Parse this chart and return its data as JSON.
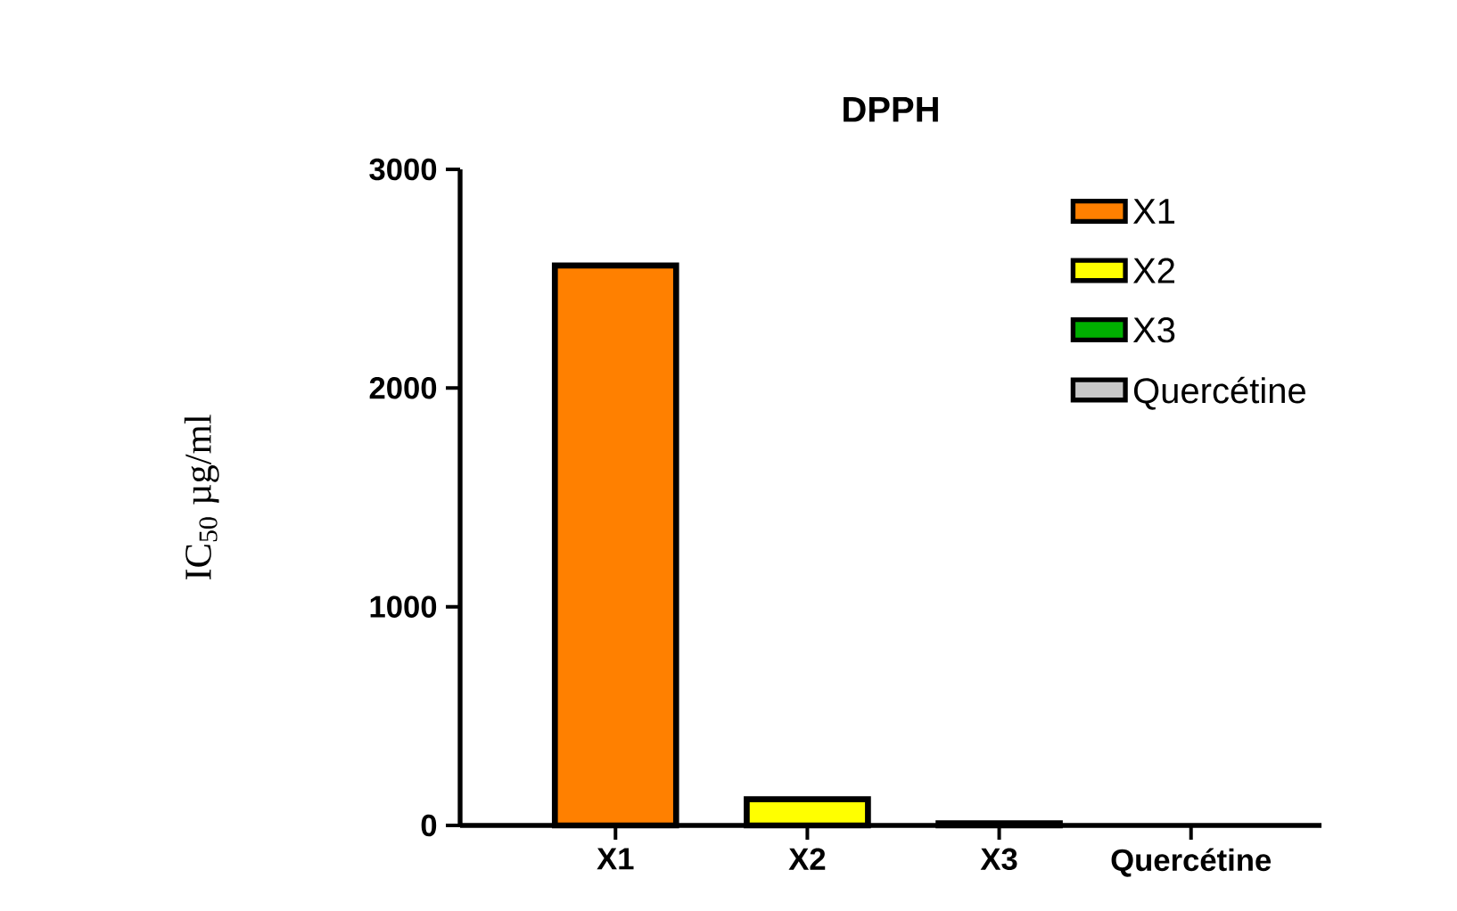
{
  "chart_data": {
    "type": "bar",
    "title": "DPPH",
    "ylabel": "IC$_{50}$ µg/ml",
    "categories": [
      "X1",
      "X2",
      "X3",
      "Quercétine"
    ],
    "series": [
      {
        "name": "X1",
        "color": "#ff8000",
        "values": [
          2560,
          null,
          null,
          null
        ]
      },
      {
        "name": "X2",
        "color": "#ffff00",
        "values": [
          null,
          120,
          null,
          null
        ]
      },
      {
        "name": "X3",
        "color": "#00b000",
        "values": [
          null,
          null,
          10,
          null
        ]
      },
      {
        "name": "Quercétine",
        "color": "#c8c8c8",
        "values": [
          null,
          null,
          null,
          null
        ]
      }
    ],
    "ylim": [
      0,
      3000
    ],
    "yticks": [
      0,
      1000,
      2000,
      3000
    ],
    "legend": "top right"
  }
}
